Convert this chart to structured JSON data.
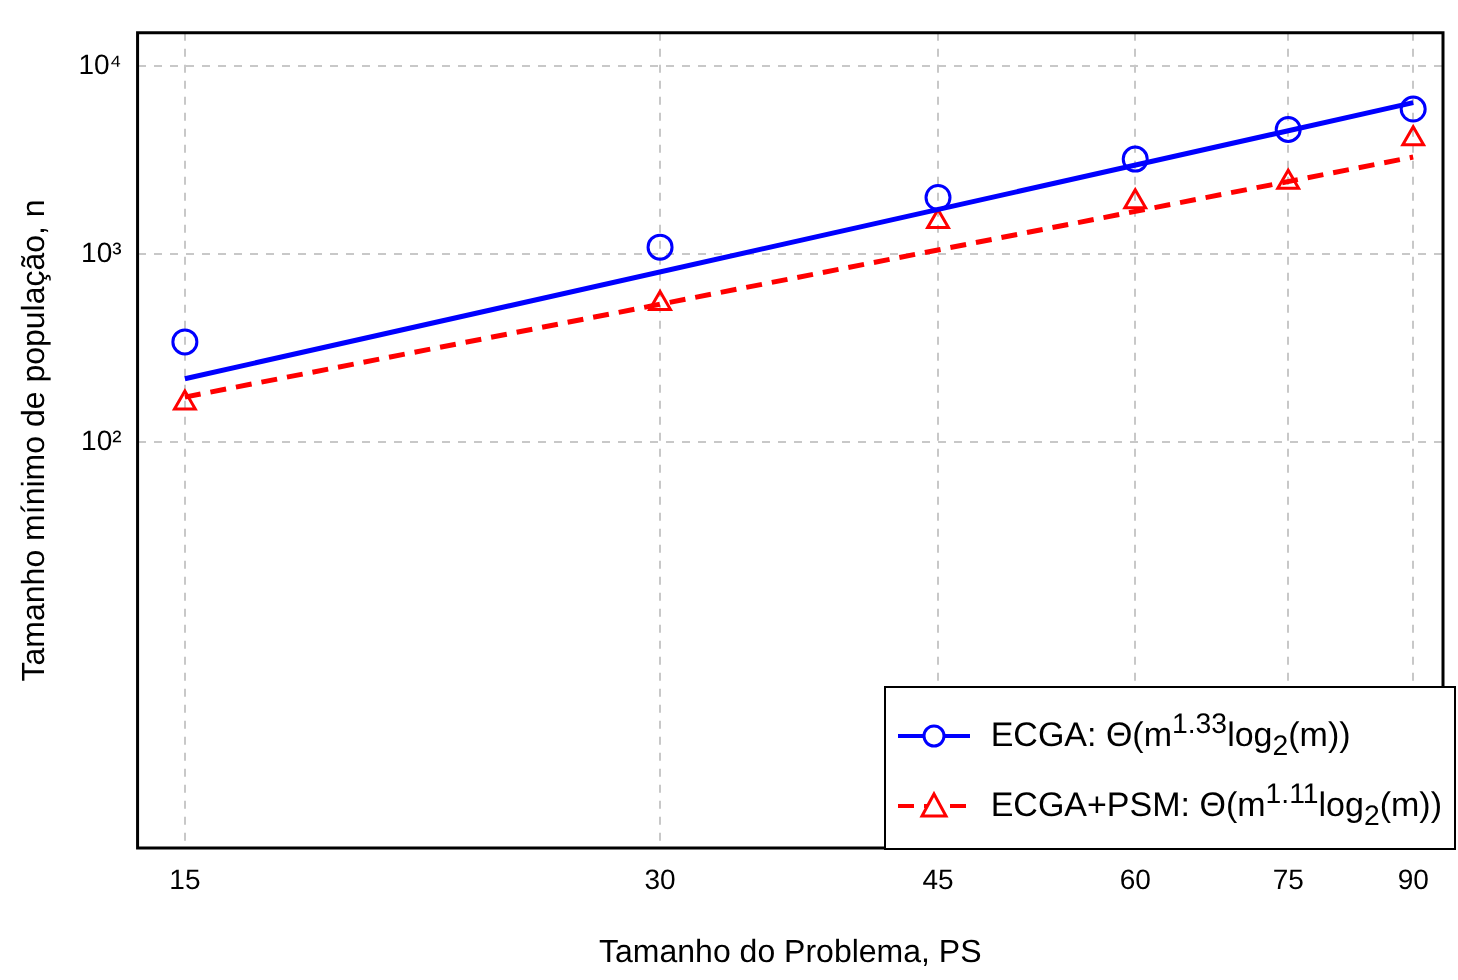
{
  "chart_data": {
    "type": "scatter",
    "xlabel": "Tamanho do Problema, PS",
    "ylabel": "Tamanho mínimo de população, n",
    "log": "xy",
    "grid": true,
    "legend": "bottom right",
    "xlim": [
      14,
      94
    ],
    "xticks": [
      15,
      30,
      45,
      60,
      75,
      90
    ],
    "ylim": [
      0.7,
      15000
    ],
    "yticks": [
      {
        "value": 100,
        "label": "10²"
      },
      {
        "value": 1000,
        "label": "10³"
      },
      {
        "value": 10000,
        "label": "10⁴"
      }
    ],
    "series": [
      {
        "name": "ECGA: Θ(m$^{1.33}$log$_{2}$(m))",
        "color": "#0000ff",
        "marker": "circle",
        "x": [
          15,
          30,
          45,
          60,
          75,
          90
        ],
        "values": [
          342,
          1090,
          2000,
          3200,
          4600,
          5900
        ]
      },
      {
        "type": "line",
        "color": "#0000ff",
        "marker": "none",
        "line_style": "solid",
        "x": [
          15,
          90
        ],
        "values": [
          218,
          6380
        ]
      },
      {
        "name": "ECGA+PSM: Θ(m$^{1.11}$log$_{2}$(m))",
        "color": "#ff0000",
        "marker": "triangle",
        "x": [
          15,
          30,
          45,
          60,
          75,
          90
        ],
        "values": [
          162,
          547,
          1490,
          1900,
          2410,
          4110
        ]
      },
      {
        "type": "line",
        "color": "#ff0000",
        "marker": "none",
        "line_style": "dashed",
        "x": [
          15,
          90
        ],
        "values": [
          174,
          3280
        ]
      }
    ]
  }
}
